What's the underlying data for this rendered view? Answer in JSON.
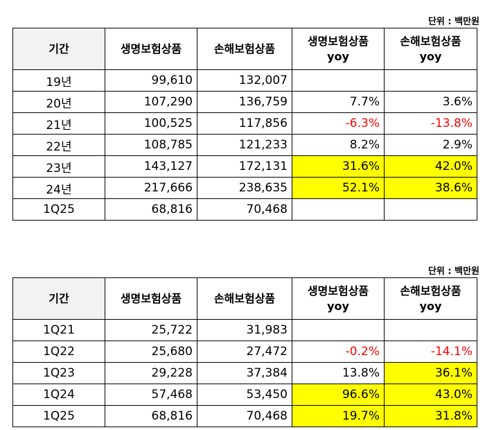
{
  "unit_label": "단위 : 백만원",
  "headers": [
    "기간",
    "생명보험상품",
    "손해보험상품",
    "생명보험상품 yoy",
    "손해보험상품 yoy"
  ],
  "highlight_color": "#ffff00",
  "negative_color": "#ff0000",
  "table1": {
    "rows": [
      {
        "period": "19년",
        "life": "99,610",
        "nonlife": "132,007",
        "life_yoy": "",
        "nonlife_yoy": ""
      },
      {
        "period": "20년",
        "life": "107,290",
        "nonlife": "136,759",
        "life_yoy": "7.7%",
        "nonlife_yoy": "3.6%"
      },
      {
        "period": "21년",
        "life": "100,525",
        "nonlife": "117,856",
        "life_yoy": "-6.3%",
        "nonlife_yoy": "-13.8%"
      },
      {
        "period": "22년",
        "life": "108,785",
        "nonlife": "121,233",
        "life_yoy": "8.2%",
        "nonlife_yoy": "2.9%"
      },
      {
        "period": "23년",
        "life": "143,127",
        "nonlife": "172,131",
        "life_yoy": "31.6%",
        "nonlife_yoy": "42.0%"
      },
      {
        "period": "24년",
        "life": "217,666",
        "nonlife": "238,635",
        "life_yoy": "52.1%",
        "nonlife_yoy": "38.6%"
      },
      {
        "period": "1Q25",
        "life": "68,816",
        "nonlife": "70,468",
        "life_yoy": "",
        "nonlife_yoy": ""
      }
    ]
  },
  "table2": {
    "rows": [
      {
        "period": "1Q21",
        "life": "25,722",
        "nonlife": "31,983",
        "life_yoy": "",
        "nonlife_yoy": ""
      },
      {
        "period": "1Q22",
        "life": "25,680",
        "nonlife": "27,472",
        "life_yoy": "-0.2%",
        "nonlife_yoy": "-14.1%"
      },
      {
        "period": "1Q23",
        "life": "29,228",
        "nonlife": "37,384",
        "life_yoy": "13.8%",
        "nonlife_yoy": "36.1%"
      },
      {
        "period": "1Q24",
        "life": "57,468",
        "nonlife": "53,450",
        "life_yoy": "96.6%",
        "nonlife_yoy": "43.0%"
      },
      {
        "period": "1Q25",
        "life": "68,816",
        "nonlife": "70,468",
        "life_yoy": "19.7%",
        "nonlife_yoy": "31.8%"
      }
    ]
  }
}
